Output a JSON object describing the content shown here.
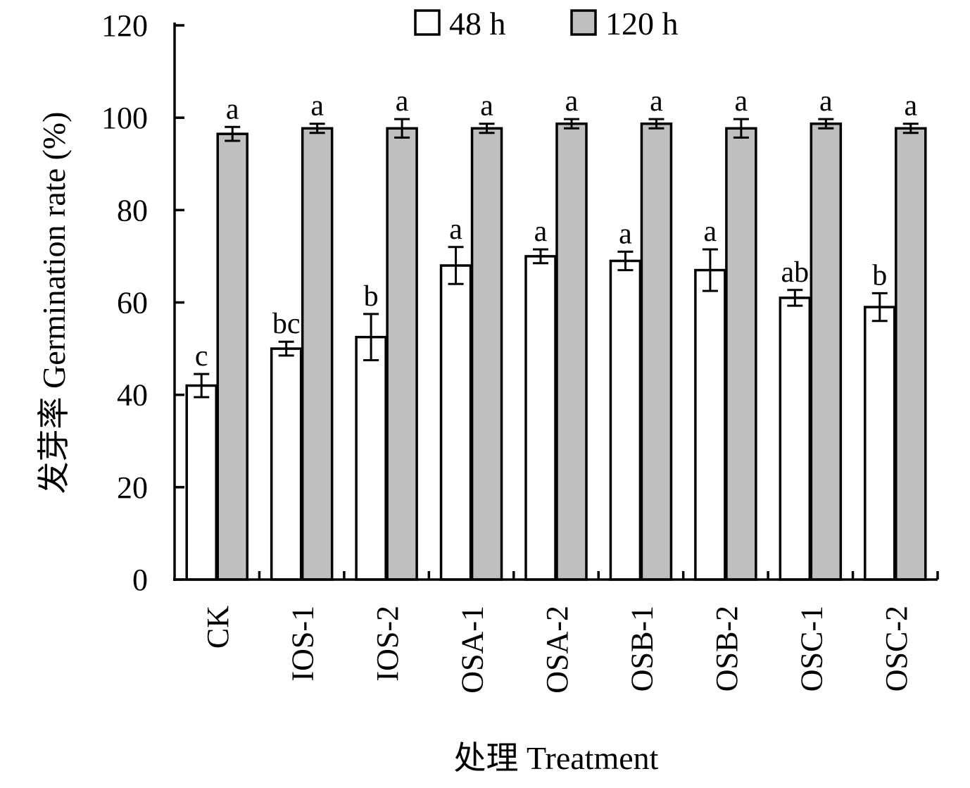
{
  "chart_data": {
    "type": "bar",
    "title": "",
    "xlabel": "处理 Treatment",
    "ylabel": "发芽率 Germination rate (%)",
    "ylim": [
      0,
      120
    ],
    "yticks": [
      "0",
      "20",
      "40",
      "60",
      "80",
      "100",
      "120"
    ],
    "grid": false,
    "legend_position": "top-center",
    "categories": [
      "CK",
      "IOS-1",
      "IOS-2",
      "OSA-1",
      "OSA-2",
      "OSB-1",
      "OSB-2",
      "OSC-1",
      "OSC-2"
    ],
    "series": [
      {
        "name": "48 h",
        "fill": "#ffffff",
        "values": [
          42,
          50,
          52.5,
          68,
          70,
          69,
          67,
          61,
          59
        ],
        "errors": [
          2.5,
          1.5,
          5,
          4,
          1.5,
          2,
          4.5,
          1.7,
          3
        ],
        "sig_labels": [
          "c",
          "bc",
          "b",
          "a",
          "a",
          "a",
          "a",
          "ab",
          "b"
        ]
      },
      {
        "name": "120 h",
        "fill": "#bfbfbf",
        "values": [
          96.5,
          97.7,
          97.7,
          97.7,
          98.7,
          98.7,
          97.7,
          98.7,
          97.7
        ],
        "errors": [
          1.5,
          1,
          2,
          1,
          1,
          1,
          2,
          1,
          1
        ],
        "sig_labels": [
          "a",
          "a",
          "a",
          "a",
          "a",
          "a",
          "a",
          "a",
          "a"
        ]
      }
    ]
  }
}
